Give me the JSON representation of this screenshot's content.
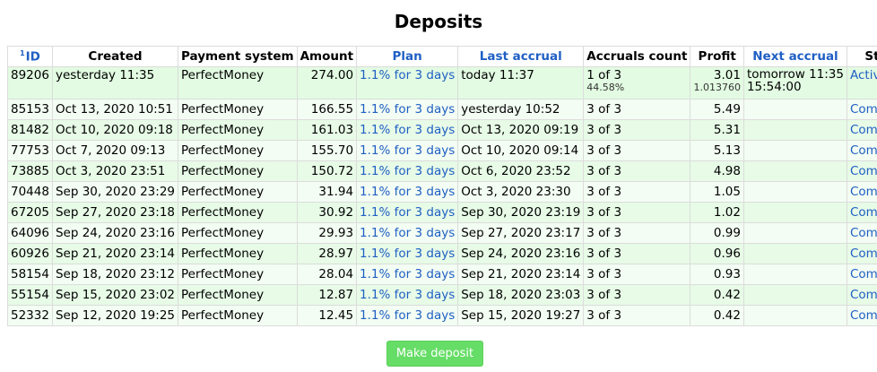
{
  "page": {
    "title": "Deposits"
  },
  "table": {
    "headers": {
      "id_sort_marker": "1",
      "id": "ID",
      "created": "Created",
      "payment_system": "Payment system",
      "amount": "Amount",
      "plan": "Plan",
      "last_accrual": "Last accrual",
      "accruals_count": "Accruals count",
      "profit": "Profit",
      "next_accrual": "Next accrual",
      "state": "State"
    },
    "active": {
      "id": "89206",
      "created": "yesterday 11:35",
      "payment_system": "PerfectMoney",
      "amount": "274.00",
      "plan": "1.1% for 3 days",
      "last_accrual": "today 11:37",
      "accruals_count": "1 of 3",
      "accruals_percent": "44.58%",
      "profit": "3.01",
      "profit_detail": "1.013760",
      "next_accrual": "tomorrow 11:35",
      "next_accrual_countdown": "15:54:00",
      "state": "Active"
    },
    "rows": [
      {
        "id": "85153",
        "created": "Oct 13, 2020 10:51",
        "payment_system": "PerfectMoney",
        "amount": "166.55",
        "plan": "1.1% for 3 days",
        "last_accrual": "yesterday 10:52",
        "accruals_count": "3 of 3",
        "profit": "5.49",
        "next_accrual": "",
        "state": "Completed"
      },
      {
        "id": "81482",
        "created": "Oct 10, 2020 09:18",
        "payment_system": "PerfectMoney",
        "amount": "161.03",
        "plan": "1.1% for 3 days",
        "last_accrual": "Oct 13, 2020 09:19",
        "accruals_count": "3 of 3",
        "profit": "5.31",
        "next_accrual": "",
        "state": "Completed"
      },
      {
        "id": "77753",
        "created": "Oct 7, 2020 09:13",
        "payment_system": "PerfectMoney",
        "amount": "155.70",
        "plan": "1.1% for 3 days",
        "last_accrual": "Oct 10, 2020 09:14",
        "accruals_count": "3 of 3",
        "profit": "5.13",
        "next_accrual": "",
        "state": "Completed"
      },
      {
        "id": "73885",
        "created": "Oct 3, 2020 23:51",
        "payment_system": "PerfectMoney",
        "amount": "150.72",
        "plan": "1.1% for 3 days",
        "last_accrual": "Oct 6, 2020 23:52",
        "accruals_count": "3 of 3",
        "profit": "4.98",
        "next_accrual": "",
        "state": "Completed"
      },
      {
        "id": "70448",
        "created": "Sep 30, 2020 23:29",
        "payment_system": "PerfectMoney",
        "amount": "31.94",
        "plan": "1.1% for 3 days",
        "last_accrual": "Oct 3, 2020 23:30",
        "accruals_count": "3 of 3",
        "profit": "1.05",
        "next_accrual": "",
        "state": "Completed"
      },
      {
        "id": "67205",
        "created": "Sep 27, 2020 23:18",
        "payment_system": "PerfectMoney",
        "amount": "30.92",
        "plan": "1.1% for 3 days",
        "last_accrual": "Sep 30, 2020 23:19",
        "accruals_count": "3 of 3",
        "profit": "1.02",
        "next_accrual": "",
        "state": "Completed"
      },
      {
        "id": "64096",
        "created": "Sep 24, 2020 23:16",
        "payment_system": "PerfectMoney",
        "amount": "29.93",
        "plan": "1.1% for 3 days",
        "last_accrual": "Sep 27, 2020 23:17",
        "accruals_count": "3 of 3",
        "profit": "0.99",
        "next_accrual": "",
        "state": "Completed"
      },
      {
        "id": "60926",
        "created": "Sep 21, 2020 23:14",
        "payment_system": "PerfectMoney",
        "amount": "28.97",
        "plan": "1.1% for 3 days",
        "last_accrual": "Sep 24, 2020 23:16",
        "accruals_count": "3 of 3",
        "profit": "0.96",
        "next_accrual": "",
        "state": "Completed"
      },
      {
        "id": "58154",
        "created": "Sep 18, 2020 23:12",
        "payment_system": "PerfectMoney",
        "amount": "28.04",
        "plan": "1.1% for 3 days",
        "last_accrual": "Sep 21, 2020 23:14",
        "accruals_count": "3 of 3",
        "profit": "0.93",
        "next_accrual": "",
        "state": "Completed"
      },
      {
        "id": "55154",
        "created": "Sep 15, 2020 23:02",
        "payment_system": "PerfectMoney",
        "amount": "12.87",
        "plan": "1.1% for 3 days",
        "last_accrual": "Sep 18, 2020 23:03",
        "accruals_count": "3 of 3",
        "profit": "0.42",
        "next_accrual": "",
        "state": "Completed"
      },
      {
        "id": "52332",
        "created": "Sep 12, 2020 19:25",
        "payment_system": "PerfectMoney",
        "amount": "12.45",
        "plan": "1.1% for 3 days",
        "last_accrual": "Sep 15, 2020 19:27",
        "accruals_count": "3 of 3",
        "profit": "0.42",
        "next_accrual": "",
        "state": "Completed"
      }
    ]
  },
  "actions": {
    "make_deposit_label": "Make deposit"
  },
  "colors": {
    "link": "#1f5fc4",
    "row_green": "#e7fbe7",
    "row_light": "#f3fdf3",
    "button_bg": "#66dd66"
  }
}
